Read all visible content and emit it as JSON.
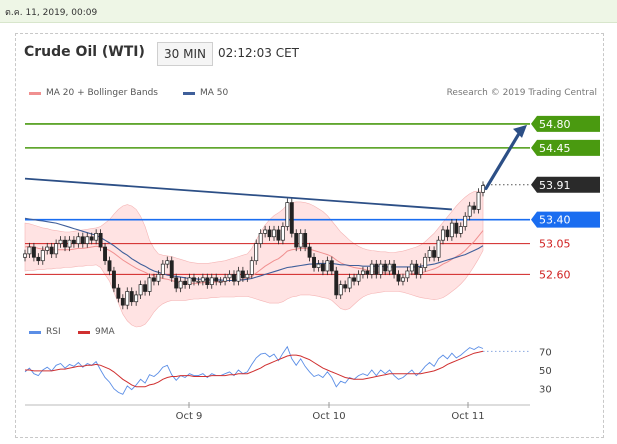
{
  "header": {
    "timestamp": "ต.ค. 11, 2019, 00:09"
  },
  "instrument": {
    "name": "Crude Oil (WTI)",
    "interval": "30 MIN",
    "clock": "02:12:03 CET"
  },
  "legend": {
    "bollinger": "MA 20 + Bollinger Bands",
    "ma50": "MA 50",
    "credit": "Research © 2019 Trading Central"
  },
  "rsi_legend": {
    "rsi": "RSI",
    "ma9": "9MA"
  },
  "colors": {
    "up_green": "#4a9a10",
    "blue_level": "#1a6df0",
    "red_level": "#d02020",
    "trend": "#2c4f86",
    "band_fill": "#ffd9d9",
    "ma20": "#f09090",
    "ma50": "#3f5f9a",
    "rsi": "#5b8ee6",
    "rsi_ma": "#d03030",
    "current": "#333333"
  },
  "chart_data": [
    {
      "type": "candlestick",
      "title": "Crude Oil (WTI)",
      "interval": "30 MIN",
      "x_ticks": [
        "Oct 9",
        "Oct 10",
        "Oct 11"
      ],
      "ylim": [
        52.05,
        55.15
      ],
      "levels": [
        {
          "label": "54.80",
          "value": 54.8,
          "kind": "resistance"
        },
        {
          "label": "54.45",
          "value": 54.45,
          "kind": "resistance"
        },
        {
          "label": "53.91",
          "value": 53.91,
          "kind": "current"
        },
        {
          "label": "53.40",
          "value": 53.4,
          "kind": "pivot"
        },
        {
          "label": "53.05",
          "value": 53.05,
          "kind": "support"
        },
        {
          "label": "52.60",
          "value": 52.6,
          "kind": "support"
        }
      ],
      "trendline": {
        "from_bar": 0,
        "from_value": 54.0,
        "to_bar": 96,
        "to_value": 53.55
      },
      "close": [
        52.9,
        53.0,
        52.85,
        52.8,
        52.95,
        53.0,
        52.9,
        53.05,
        53.1,
        53.0,
        53.1,
        53.05,
        53.15,
        53.05,
        53.15,
        53.1,
        53.2,
        53.0,
        52.8,
        52.65,
        52.4,
        52.25,
        52.15,
        52.35,
        52.2,
        52.3,
        52.45,
        52.35,
        52.55,
        52.5,
        52.6,
        52.75,
        52.8,
        52.55,
        52.4,
        52.5,
        52.45,
        52.55,
        52.5,
        52.5,
        52.55,
        52.45,
        52.55,
        52.5,
        52.5,
        52.55,
        52.6,
        52.5,
        52.65,
        52.55,
        52.6,
        52.8,
        53.05,
        53.2,
        53.25,
        53.15,
        53.25,
        53.1,
        53.3,
        53.65,
        53.2,
        53.0,
        53.2,
        53.0,
        52.85,
        52.7,
        52.75,
        52.65,
        52.8,
        52.65,
        52.3,
        52.45,
        52.4,
        52.55,
        52.5,
        52.6,
        52.65,
        52.6,
        52.75,
        52.6,
        52.75,
        52.65,
        52.75,
        52.6,
        52.5,
        52.55,
        52.65,
        52.75,
        52.6,
        52.7,
        52.85,
        52.95,
        52.85,
        53.1,
        53.25,
        53.15,
        53.35,
        53.2,
        53.3,
        53.45,
        53.6,
        53.55,
        53.8,
        53.9
      ],
      "ma20": [
        53.0,
        53.01,
        53.0,
        52.98,
        52.97,
        52.97,
        52.96,
        52.96,
        52.96,
        52.96,
        52.96,
        52.97,
        52.98,
        52.98,
        52.99,
        53.0,
        53.01,
        53.0,
        52.98,
        52.95,
        52.91,
        52.86,
        52.81,
        52.77,
        52.73,
        52.69,
        52.66,
        52.63,
        52.6,
        52.58,
        52.56,
        52.54,
        52.53,
        52.51,
        52.49,
        52.48,
        52.47,
        52.47,
        52.47,
        52.47,
        52.48,
        52.48,
        52.48,
        52.49,
        52.49,
        52.5,
        52.51,
        52.51,
        52.52,
        52.53,
        52.54,
        52.57,
        52.62,
        52.67,
        52.72,
        52.76,
        52.8,
        52.83,
        52.88,
        52.94,
        52.96,
        52.97,
        52.98,
        52.98,
        52.97,
        52.95,
        52.93,
        52.91,
        52.89,
        52.86,
        52.81,
        52.77,
        52.74,
        52.72,
        52.7,
        52.69,
        52.68,
        52.66,
        52.65,
        52.63,
        52.63,
        52.62,
        52.62,
        52.61,
        52.6,
        52.6,
        52.6,
        52.61,
        52.62,
        52.62,
        52.64,
        52.66,
        52.68,
        52.71,
        52.75,
        52.78,
        52.82,
        52.86,
        52.9,
        52.95,
        53.02,
        53.08,
        53.16,
        53.24
      ],
      "band_upper": [
        53.35,
        53.34,
        53.32,
        53.3,
        53.28,
        53.27,
        53.25,
        53.24,
        53.23,
        53.22,
        53.22,
        53.23,
        53.24,
        53.25,
        53.26,
        53.27,
        53.28,
        53.3,
        53.35,
        53.4,
        53.48,
        53.55,
        53.6,
        53.62,
        53.6,
        53.55,
        53.45,
        53.3,
        53.1,
        52.98,
        52.9,
        52.88,
        52.87,
        52.86,
        52.84,
        52.82,
        52.8,
        52.78,
        52.77,
        52.76,
        52.76,
        52.76,
        52.77,
        52.78,
        52.79,
        52.8,
        52.82,
        52.84,
        52.86,
        52.88,
        52.9,
        52.98,
        53.1,
        53.22,
        53.32,
        53.4,
        53.46,
        53.5,
        53.55,
        53.62,
        53.65,
        53.66,
        53.66,
        53.65,
        53.63,
        53.6,
        53.56,
        53.52,
        53.46,
        53.38,
        53.3,
        53.22,
        53.16,
        53.1,
        53.05,
        53.01,
        52.98,
        52.96,
        52.95,
        52.94,
        52.93,
        52.93,
        52.92,
        52.92,
        52.93,
        52.94,
        52.96,
        52.98,
        53.0,
        53.03,
        53.08,
        53.14,
        53.2,
        53.28,
        53.36,
        53.44,
        53.52,
        53.6,
        53.67,
        53.73,
        53.78,
        53.81,
        53.82,
        53.82
      ],
      "band_lower": [
        52.65,
        52.66,
        52.66,
        52.67,
        52.67,
        52.68,
        52.68,
        52.69,
        52.69,
        52.7,
        52.7,
        52.71,
        52.72,
        52.72,
        52.73,
        52.73,
        52.74,
        52.7,
        52.6,
        52.5,
        52.34,
        52.18,
        52.02,
        51.92,
        51.86,
        51.83,
        51.84,
        51.87,
        51.95,
        52.05,
        52.12,
        52.17,
        52.2,
        52.22,
        52.22,
        52.22,
        52.22,
        52.23,
        52.24,
        52.24,
        52.25,
        52.25,
        52.26,
        52.26,
        52.27,
        52.27,
        52.27,
        52.27,
        52.28,
        52.28,
        52.28,
        52.26,
        52.24,
        52.22,
        52.2,
        52.18,
        52.18,
        52.18,
        52.2,
        52.24,
        52.27,
        52.28,
        52.3,
        52.3,
        52.3,
        52.29,
        52.28,
        52.26,
        52.25,
        52.22,
        52.16,
        52.1,
        52.08,
        52.1,
        52.16,
        52.22,
        52.27,
        52.3,
        52.32,
        52.33,
        52.34,
        52.35,
        52.35,
        52.35,
        52.35,
        52.34,
        52.32,
        52.3,
        52.28,
        52.26,
        52.25,
        52.24,
        52.23,
        52.24,
        52.26,
        52.3,
        52.35,
        52.4,
        52.46,
        52.53,
        52.62,
        52.72,
        52.83,
        52.95
      ],
      "ma50": [
        53.42,
        53.41,
        53.4,
        53.39,
        53.38,
        53.37,
        53.36,
        53.35,
        53.33,
        53.31,
        53.29,
        53.27,
        53.25,
        53.23,
        53.21,
        53.19,
        53.17,
        53.14,
        53.1,
        53.06,
        53.02,
        52.97,
        52.92,
        52.88,
        52.83,
        52.79,
        52.75,
        52.72,
        52.68,
        52.65,
        52.63,
        52.61,
        52.59,
        52.58,
        52.57,
        52.56,
        52.55,
        52.54,
        52.54,
        52.53,
        52.53,
        52.52,
        52.52,
        52.52,
        52.52,
        52.51,
        52.51,
        52.51,
        52.52,
        52.52,
        52.53,
        52.54,
        52.56,
        52.58,
        52.6,
        52.62,
        52.64,
        52.66,
        52.68,
        52.7,
        52.71,
        52.72,
        52.73,
        52.74,
        52.75,
        52.75,
        52.76,
        52.76,
        52.76,
        52.76,
        52.75,
        52.74,
        52.74,
        52.73,
        52.73,
        52.73,
        52.72,
        52.72,
        52.72,
        52.72,
        52.72,
        52.71,
        52.71,
        52.71,
        52.71,
        52.71,
        52.71,
        52.71,
        52.71,
        52.72,
        52.73,
        52.74,
        52.75,
        52.77,
        52.79,
        52.81,
        52.83,
        52.85,
        52.87,
        52.89,
        52.92,
        52.95,
        52.98,
        53.02
      ]
    },
    {
      "type": "line",
      "title": "RSI",
      "ylim": [
        20,
        80
      ],
      "y_ticks": [
        70,
        50,
        30
      ],
      "series": [
        {
          "name": "RSI",
          "values": [
            48,
            52,
            46,
            44,
            50,
            53,
            49,
            55,
            57,
            52,
            56,
            54,
            58,
            53,
            57,
            55,
            59,
            50,
            42,
            37,
            30,
            26,
            24,
            33,
            29,
            34,
            40,
            36,
            45,
            43,
            47,
            53,
            55,
            45,
            39,
            44,
            42,
            46,
            44,
            44,
            46,
            42,
            46,
            44,
            44,
            46,
            48,
            44,
            50,
            46,
            48,
            56,
            63,
            67,
            68,
            64,
            67,
            60,
            68,
            75,
            62,
            55,
            62,
            54,
            48,
            43,
            45,
            42,
            48,
            42,
            32,
            38,
            36,
            42,
            40,
            44,
            46,
            44,
            50,
            44,
            50,
            46,
            50,
            44,
            40,
            42,
            46,
            50,
            44,
            48,
            54,
            58,
            54,
            62,
            66,
            62,
            68,
            63,
            66,
            70,
            74,
            72,
            75,
            73
          ]
        },
        {
          "name": "9MA",
          "values": [
            50,
            50,
            49,
            49,
            49,
            49,
            49,
            50,
            51,
            51,
            52,
            53,
            54,
            54,
            55,
            55,
            56,
            55,
            53,
            51,
            48,
            44,
            40,
            37,
            34,
            32,
            32,
            32,
            34,
            35,
            37,
            40,
            42,
            43,
            43,
            44,
            44,
            44,
            43,
            43,
            43,
            43,
            44,
            44,
            44,
            44,
            45,
            45,
            46,
            46,
            46,
            48,
            50,
            52,
            55,
            57,
            59,
            61,
            63,
            65,
            66,
            66,
            65,
            63,
            61,
            58,
            55,
            52,
            50,
            48,
            46,
            44,
            42,
            41,
            40,
            40,
            40,
            41,
            42,
            43,
            44,
            45,
            46,
            46,
            46,
            46,
            46,
            46,
            46,
            46,
            47,
            48,
            49,
            51,
            53,
            56,
            58,
            60,
            62,
            64,
            66,
            68,
            69,
            70
          ]
        }
      ]
    }
  ]
}
